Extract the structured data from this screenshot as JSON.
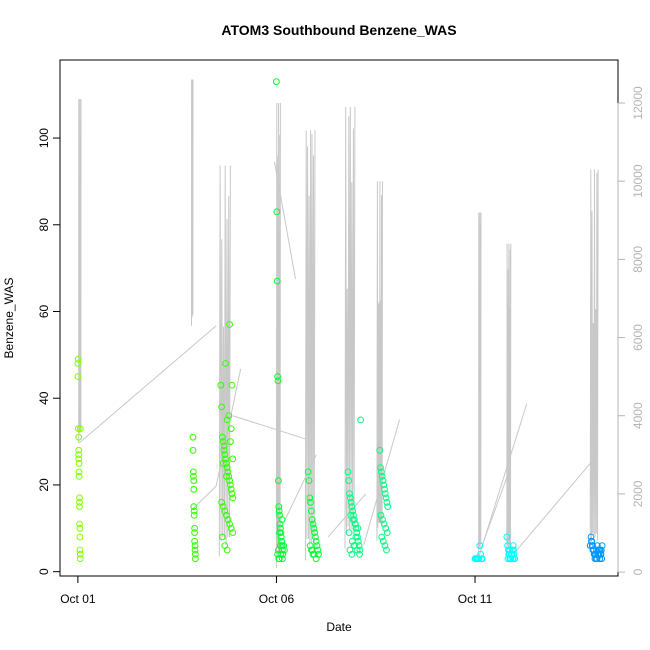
{
  "chart_data": {
    "type": "scatter",
    "title": "ATOM3 Southbound Benzene_WAS",
    "xlabel": "Date",
    "ylabel": "Benzene_WAS",
    "y_ticks": [
      0,
      20,
      40,
      60,
      80,
      100
    ],
    "y_tick_labels": [
      "0",
      "20",
      "40",
      "60",
      "80",
      "100"
    ],
    "ylim": [
      -1,
      118
    ],
    "y2_ticks": [
      0,
      2000,
      4000,
      6000,
      8000,
      10000,
      12000
    ],
    "y2_tick_labels": [
      "0",
      "2000",
      "4000",
      "6000",
      "8000",
      "10000",
      "12000"
    ],
    "y2lim": [
      -100,
      13100
    ],
    "x_ticks": [
      1,
      6,
      11
    ],
    "x_tick_labels": [
      "Oct 01",
      "Oct 06",
      "Oct 11"
    ],
    "xlim": [
      0.55,
      14.6
    ],
    "grid": false,
    "legend": "none",
    "colors": {
      "secondary_trace": "#c8c8c8",
      "axis": "#000000",
      "secondary_axis": "#b4b4b4"
    },
    "secondary_series": {
      "name": "",
      "color": "#c8c8c8",
      "bursts": [
        {
          "x": 1.05,
          "width": 0.06,
          "base": 3300,
          "peak": 12100
        },
        {
          "x": 3.88,
          "width": 0.04,
          "base": 6300,
          "peak": 12600
        },
        {
          "x": 4.7,
          "width": 0.28,
          "base": 400,
          "peak": 10400
        },
        {
          "x": 6.05,
          "width": 0.1,
          "base": 100,
          "peak": 12000
        },
        {
          "x": 6.85,
          "width": 0.24,
          "base": 300,
          "peak": 11300
        },
        {
          "x": 7.85,
          "width": 0.25,
          "base": 600,
          "peak": 11900
        },
        {
          "x": 8.6,
          "width": 0.14,
          "base": 800,
          "peak": 10000
        },
        {
          "x": 11.12,
          "width": 0.06,
          "base": 300,
          "peak": 9200
        },
        {
          "x": 11.85,
          "width": 0.1,
          "base": 300,
          "peak": 8400
        },
        {
          "x": 14.0,
          "width": 0.2,
          "base": 500,
          "peak": 10300
        }
      ],
      "connectors": [
        [
          1.03,
          3300,
          4.48,
          6300
        ],
        [
          3.88,
          1600,
          4.48,
          2200
        ],
        [
          4.48,
          2200,
          5.1,
          5200
        ],
        [
          5.95,
          10500,
          6.48,
          7500
        ],
        [
          4.9,
          4000,
          6.75,
          3400
        ],
        [
          6.2,
          1300,
          7.0,
          3000
        ],
        [
          7.3,
          900,
          8.25,
          2000
        ],
        [
          8.2,
          700,
          9.1,
          3900
        ],
        [
          11.15,
          600,
          11.9,
          2700
        ],
        [
          11.1,
          400,
          12.3,
          4300
        ],
        [
          12.0,
          500,
          14.0,
          2900
        ]
      ]
    },
    "series": [
      {
        "color": "#80ff00",
        "x": [
          1.0,
          1.0,
          1.01,
          1.01,
          1.02,
          1.02,
          1.02,
          1.02,
          1.03,
          1.03,
          1.03,
          1.04,
          1.04,
          1.04,
          1.04,
          1.05,
          1.05,
          1.05,
          1.06,
          1.06,
          1.06
        ],
        "y": [
          48,
          45,
          49,
          33,
          31,
          28,
          27,
          26,
          25,
          23,
          22,
          17,
          16,
          15,
          11,
          10,
          8,
          5,
          4,
          3,
          33
        ]
      },
      {
        "color": "#33ff00",
        "x": [
          3.9,
          3.9,
          3.91,
          3.91,
          3.92,
          3.92,
          3.92,
          3.93,
          3.93,
          3.94,
          3.94,
          3.94,
          3.95,
          3.95,
          3.96,
          3.96,
          4.6,
          4.62,
          4.64,
          4.66,
          4.68,
          4.7,
          4.72,
          4.74,
          4.76,
          4.78,
          4.8,
          4.82,
          4.84,
          4.86,
          4.88,
          4.9,
          4.62,
          4.66,
          4.7,
          4.74,
          4.78,
          4.82,
          4.86,
          4.9,
          4.64,
          4.7,
          4.76,
          4.82,
          4.88,
          4.72,
          4.8,
          4.86,
          4.68,
          4.76,
          4.84,
          4.9,
          4.74,
          4.66
        ],
        "y": [
          31,
          28,
          23,
          22,
          21,
          19,
          15,
          14,
          13,
          10,
          9,
          7,
          6,
          5,
          4,
          3,
          43,
          38,
          31,
          30,
          28,
          27,
          26,
          25,
          24,
          23,
          22,
          21,
          20,
          19,
          18,
          17,
          16,
          15,
          14,
          13,
          12,
          11,
          10,
          9,
          8,
          6,
          5,
          57,
          43,
          48,
          36,
          33,
          29,
          35,
          30,
          26,
          22,
          25
        ]
      },
      {
        "color": "#00ff33",
        "x": [
          6.0,
          6.01,
          6.02,
          6.03,
          6.04,
          6.05,
          6.06,
          6.07,
          6.08,
          6.09,
          6.1,
          6.11,
          6.12,
          6.13,
          6.14,
          6.15,
          6.03,
          6.07,
          6.11,
          6.15,
          6.05,
          6.1,
          6.18,
          6.2,
          6.16,
          6.08,
          6.13,
          6.06,
          6.12,
          6.14,
          6.8,
          6.82,
          6.84,
          6.86,
          6.88,
          6.9,
          6.92,
          6.94,
          6.96,
          6.98,
          7.0,
          7.02,
          7.04,
          7.06,
          6.85,
          6.9,
          6.95,
          7.0,
          6.88,
          6.92
        ],
        "y": [
          113,
          83,
          67,
          45,
          44,
          21,
          15,
          14,
          13,
          11,
          10,
          9,
          8,
          7,
          6,
          5,
          4,
          3,
          4,
          3,
          5,
          6,
          6,
          5,
          4,
          9,
          7,
          3,
          8,
          12,
          23,
          21,
          17,
          16,
          14,
          12,
          11,
          10,
          9,
          8,
          7,
          6,
          5,
          4,
          6,
          5,
          4,
          3,
          5,
          4
        ]
      },
      {
        "color": "#00ff80",
        "x": [
          7.8,
          7.82,
          7.84,
          7.86,
          7.88,
          7.9,
          7.92,
          7.94,
          7.96,
          7.98,
          8.0,
          8.02,
          8.04,
          8.06,
          8.08,
          8.1,
          7.85,
          7.9,
          7.95,
          8.0,
          8.05,
          7.87,
          7.93,
          7.99,
          8.12,
          7.83,
          7.91,
          7.97,
          8.03,
          8.09,
          8.6,
          8.62,
          8.64,
          8.66,
          8.68,
          8.7,
          8.72,
          8.74,
          8.76,
          8.78,
          8.8,
          8.63,
          8.67,
          8.71,
          8.75,
          8.79,
          8.65,
          8.69,
          8.73,
          8.77
        ],
        "y": [
          23,
          21,
          18,
          17,
          16,
          15,
          14,
          13,
          12,
          11,
          10,
          9,
          8,
          7,
          6,
          5,
          5,
          4,
          6,
          8,
          10,
          13,
          12,
          11,
          35,
          9,
          7,
          6,
          5,
          4,
          28,
          24,
          23,
          22,
          21,
          20,
          19,
          18,
          17,
          16,
          15,
          13,
          12,
          11,
          10,
          9,
          8,
          7,
          6,
          5
        ]
      },
      {
        "color": "#00ffff",
        "x": [
          11.0,
          11.02,
          11.04,
          11.06,
          11.08,
          11.1,
          11.12,
          11.14,
          11.16,
          11.18,
          11.8,
          11.82,
          11.84,
          11.86,
          11.88,
          11.9,
          11.92,
          11.94,
          11.96,
          11.98,
          12.0,
          11.83,
          11.87,
          11.91,
          11.95,
          11.99,
          11.85,
          11.89,
          11.93,
          11.97
        ],
        "y": [
          3,
          3,
          3,
          3,
          3,
          3,
          6,
          4,
          3,
          3,
          8,
          6,
          5,
          4,
          3,
          3,
          4,
          5,
          6,
          4,
          3,
          3,
          5,
          4,
          3,
          3,
          4,
          3,
          4,
          5
        ]
      },
      {
        "color": "#0099ff",
        "x": [
          13.9,
          13.92,
          13.94,
          13.96,
          13.98,
          14.0,
          14.02,
          14.04,
          14.06,
          14.08,
          14.1,
          14.12,
          14.14,
          14.16,
          14.18,
          14.2,
          13.93,
          13.97,
          14.01,
          14.05,
          14.09,
          14.13,
          14.17,
          13.95,
          13.99,
          14.03,
          14.07,
          14.11,
          14.15,
          14.19
        ],
        "y": [
          6,
          8,
          7,
          6,
          5,
          4,
          3,
          4,
          5,
          6,
          5,
          4,
          3,
          4,
          5,
          6,
          7,
          5,
          4,
          3,
          4,
          5,
          4,
          6,
          5,
          4,
          3,
          4,
          5,
          3
        ]
      }
    ]
  }
}
